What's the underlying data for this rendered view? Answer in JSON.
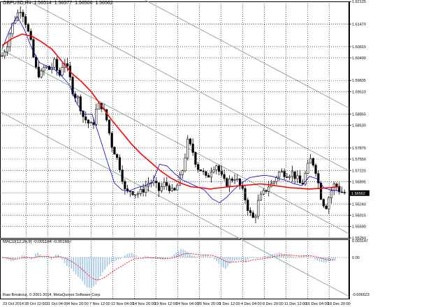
{
  "header": {
    "symbol": "GBPUSD,H4",
    "open": "1.56514",
    "high": "1.56577",
    "low": "1.56506",
    "close": "1.56562"
  },
  "current_price": "1.56562",
  "macd_header": "MACD(12,26,9) -0.001184 -0.001687",
  "macd_axis": [
    "0.003147",
    "0.00",
    "-0.006623"
  ],
  "copyright": "Raw Breakout, © 2001-2014, MetaQuotes Software Corp.",
  "colors": {
    "candle": "#000000",
    "ma_slow": "#ff0000",
    "ma_fast": "#0000cc",
    "channel": "#7fa88c",
    "macd_hist": "#9ec6e6",
    "macd_signal": "#ff0000",
    "price_box": "#000000"
  },
  "chart_data": {
    "type": "candlestick",
    "price_axis": [
      "1.62125",
      "1.61470",
      "1.60815",
      "1.60490",
      "1.59835",
      "1.59510",
      "1.58855",
      "1.58530",
      "1.57875",
      "1.57550",
      "1.57220",
      "1.56895",
      "1.56240",
      "1.55915",
      "1.55590",
      "1.55260"
    ],
    "time_axis": [
      "23 Oct 2014",
      "28 Oct 12:00",
      "31 Oct 04:00",
      "4 Nov 20:00",
      "7 Nov 12:00",
      "12 Nov 04:00",
      "14 Nov 20:00",
      "19 Nov 12:00",
      "24 Nov 04:00",
      "26 Nov 20:00",
      "1 Dec 12:00",
      "4 Dec 04:00",
      "8 Dec 20:00",
      "11 Dec 12:00",
      "16 Dec 04:00",
      "18 Dec 20:00"
    ],
    "ylim": [
      1.5526,
      1.6213
    ],
    "close_path": [
      1.6055,
      1.6085,
      1.614,
      1.6172,
      1.6195,
      1.615,
      1.6095,
      1.602,
      1.5995,
      1.6025,
      1.6015,
      1.6035,
      1.5995,
      1.6045,
      1.6005,
      1.5945,
      1.593,
      1.588,
      1.5862,
      1.5848,
      1.591,
      1.591,
      1.5868,
      1.5798,
      1.5765,
      1.572,
      1.5652,
      1.5665,
      1.5656,
      1.5656,
      1.5672,
      1.569,
      1.5684,
      1.5664,
      1.5682,
      1.5677,
      1.5653,
      1.5683,
      1.5727,
      1.5805,
      1.5782,
      1.5732,
      1.5722,
      1.5695,
      1.5727,
      1.5741,
      1.5706,
      1.5682,
      1.5695,
      1.5703,
      1.5678,
      1.5645,
      1.5598,
      1.5578,
      1.5638,
      1.5656,
      1.5677,
      1.5686,
      1.5715,
      1.5716,
      1.5712,
      1.5715,
      1.5698,
      1.5677,
      1.5722,
      1.5758,
      1.5721,
      1.5649,
      1.5612,
      1.5658,
      1.5684,
      1.5663,
      1.5656
    ],
    "ma_slow": [
      1.6085,
      1.6105,
      1.6118,
      1.6112,
      1.6095,
      1.6075,
      1.604,
      1.6005,
      1.598,
      1.595,
      1.591,
      1.587,
      1.5835,
      1.58,
      1.577,
      1.5745,
      1.572,
      1.57,
      1.5685,
      1.5675,
      1.5672,
      1.5668,
      1.5672,
      1.5675,
      1.5678,
      1.568,
      1.5683,
      1.568,
      1.5676,
      1.5672,
      1.567,
      1.5668,
      1.567,
      1.5672,
      1.5675
    ],
    "ma_fast": [
      1.6075,
      1.613,
      1.617,
      1.613,
      1.6075,
      1.6035,
      1.6025,
      1.6015,
      1.5995,
      1.597,
      1.5915,
      1.5885,
      1.5885,
      1.582,
      1.575,
      1.5685,
      1.5665,
      1.5663,
      1.5672,
      1.5678,
      1.5685,
      1.574,
      1.5735,
      1.5713,
      1.5695,
      1.5685,
      1.5675,
      1.5665,
      1.564,
      1.5628,
      1.5645,
      1.5668,
      1.5686,
      1.5701,
      1.5705,
      1.5708,
      1.5705,
      1.5698,
      1.5692,
      1.5683,
      1.5678,
      1.5705,
      1.5698,
      1.567,
      1.5665,
      1.5662
    ]
  }
}
